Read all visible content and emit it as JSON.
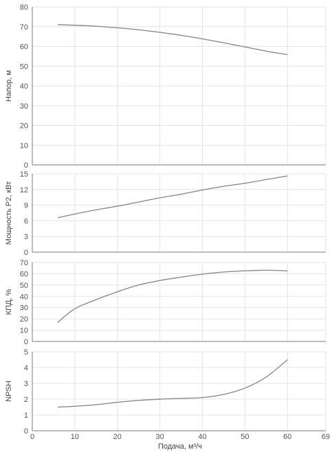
{
  "chart_data": {
    "type": "line",
    "x_axis": {
      "label": "Подача, м³/ч",
      "range": [
        0,
        69
      ],
      "ticks": [
        0,
        10,
        20,
        30,
        40,
        50,
        60,
        69
      ]
    },
    "panels": [
      {
        "ylabel": "Напор, м",
        "ylim": [
          0,
          80
        ],
        "yticks": [
          0,
          10,
          20,
          30,
          40,
          50,
          60,
          70,
          80
        ],
        "x": [
          6,
          10,
          15,
          20,
          25,
          30,
          35,
          40,
          45,
          50,
          55,
          60
        ],
        "y": [
          71,
          70.7,
          70.2,
          69.4,
          68.4,
          67.1,
          65.6,
          63.8,
          61.8,
          59.7,
          57.6,
          55.8
        ]
      },
      {
        "ylabel": "Мощность P2, кВт",
        "ylim": [
          0,
          15
        ],
        "yticks": [
          0,
          3,
          6,
          9,
          12,
          15
        ],
        "x": [
          6,
          10,
          15,
          20,
          25,
          30,
          35,
          40,
          45,
          50,
          55,
          60
        ],
        "y": [
          6.6,
          7.3,
          8.1,
          8.8,
          9.6,
          10.4,
          11.1,
          11.9,
          12.6,
          13.2,
          13.9,
          14.6
        ]
      },
      {
        "ylabel": "КПД, %",
        "ylim": [
          0,
          70
        ],
        "yticks": [
          0,
          10,
          20,
          30,
          40,
          50,
          60,
          70
        ],
        "x": [
          6,
          10,
          15,
          20,
          25,
          30,
          35,
          40,
          45,
          50,
          55,
          60
        ],
        "y": [
          17,
          29,
          37,
          44,
          50,
          54,
          57,
          59.6,
          61.5,
          62.6,
          63.1,
          62.6
        ]
      },
      {
        "ylabel": "NPSH",
        "ylim": [
          0,
          5
        ],
        "yticks": [
          0,
          1,
          2,
          3,
          4,
          5
        ],
        "x": [
          6,
          10,
          15,
          20,
          25,
          30,
          35,
          40,
          45,
          50,
          55,
          60
        ],
        "y": [
          1.5,
          1.55,
          1.65,
          1.8,
          1.92,
          2.0,
          2.05,
          2.1,
          2.3,
          2.7,
          3.4,
          4.5
        ]
      }
    ]
  }
}
